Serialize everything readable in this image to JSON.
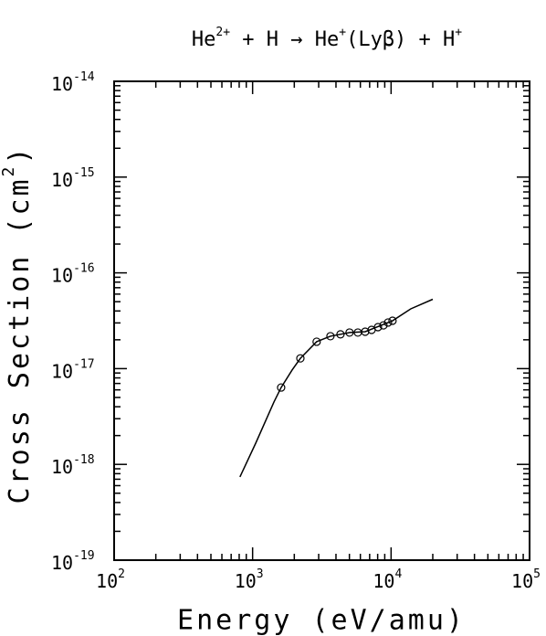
{
  "chart_data": {
    "type": "line",
    "title": [
      "He",
      "2+",
      " + H → He",
      "+",
      "(Lyβ) + H",
      "+"
    ],
    "x_label": "Energy (eV/amu)",
    "y_label": [
      "Cross Section (cm",
      "2",
      ")"
    ],
    "log_x": true,
    "log_y": true,
    "xlim": [
      100,
      100000
    ],
    "ylim": [
      1e-19,
      1e-14
    ],
    "xticks": [
      {
        "value": 100,
        "label": "10",
        "exponent": "2"
      },
      {
        "value": 1000,
        "label": "10",
        "exponent": "3"
      },
      {
        "value": 10000,
        "label": "10",
        "exponent": "4"
      },
      {
        "value": 100000,
        "label": "10",
        "exponent": "5"
      }
    ],
    "yticks": [
      {
        "value": 1e-19,
        "label": "10",
        "exponent": "-19"
      },
      {
        "value": 1e-18,
        "label": "10",
        "exponent": "-18"
      },
      {
        "value": 1e-17,
        "label": "10",
        "exponent": "-17"
      },
      {
        "value": 1e-16,
        "label": "10",
        "exponent": "-16"
      },
      {
        "value": 1e-15,
        "label": "10",
        "exponent": "-15"
      },
      {
        "value": 1e-14,
        "label": "10",
        "exponent": "-14"
      }
    ],
    "series": [
      {
        "kind": "curve",
        "color": "#000000",
        "x": [
          810,
          1052,
          1426,
          1607,
          1928,
          2213,
          2900,
          3647,
          5013,
          6500,
          10240,
          13870,
          20000
        ],
        "values": [
          7.4e-19,
          1.66e-18,
          4.48e-18,
          6.35e-18,
          9.66e-18,
          1.28e-17,
          1.91e-17,
          2.18e-17,
          2.38e-17,
          2.43e-17,
          3.16e-17,
          4.21e-17,
          5.3e-17
        ]
      },
      {
        "kind": "points",
        "color": "#000000",
        "x": [
          1607,
          2213,
          2900,
          3647,
          4310,
          5013,
          5754,
          6500,
          7230,
          8040,
          8810,
          9500,
          10240
        ],
        "values": [
          6.35e-18,
          1.28e-17,
          1.91e-17,
          2.18e-17,
          2.28e-17,
          2.38e-17,
          2.38e-17,
          2.43e-17,
          2.54e-17,
          2.71e-17,
          2.83e-17,
          3.03e-17,
          3.16e-17
        ]
      }
    ]
  }
}
